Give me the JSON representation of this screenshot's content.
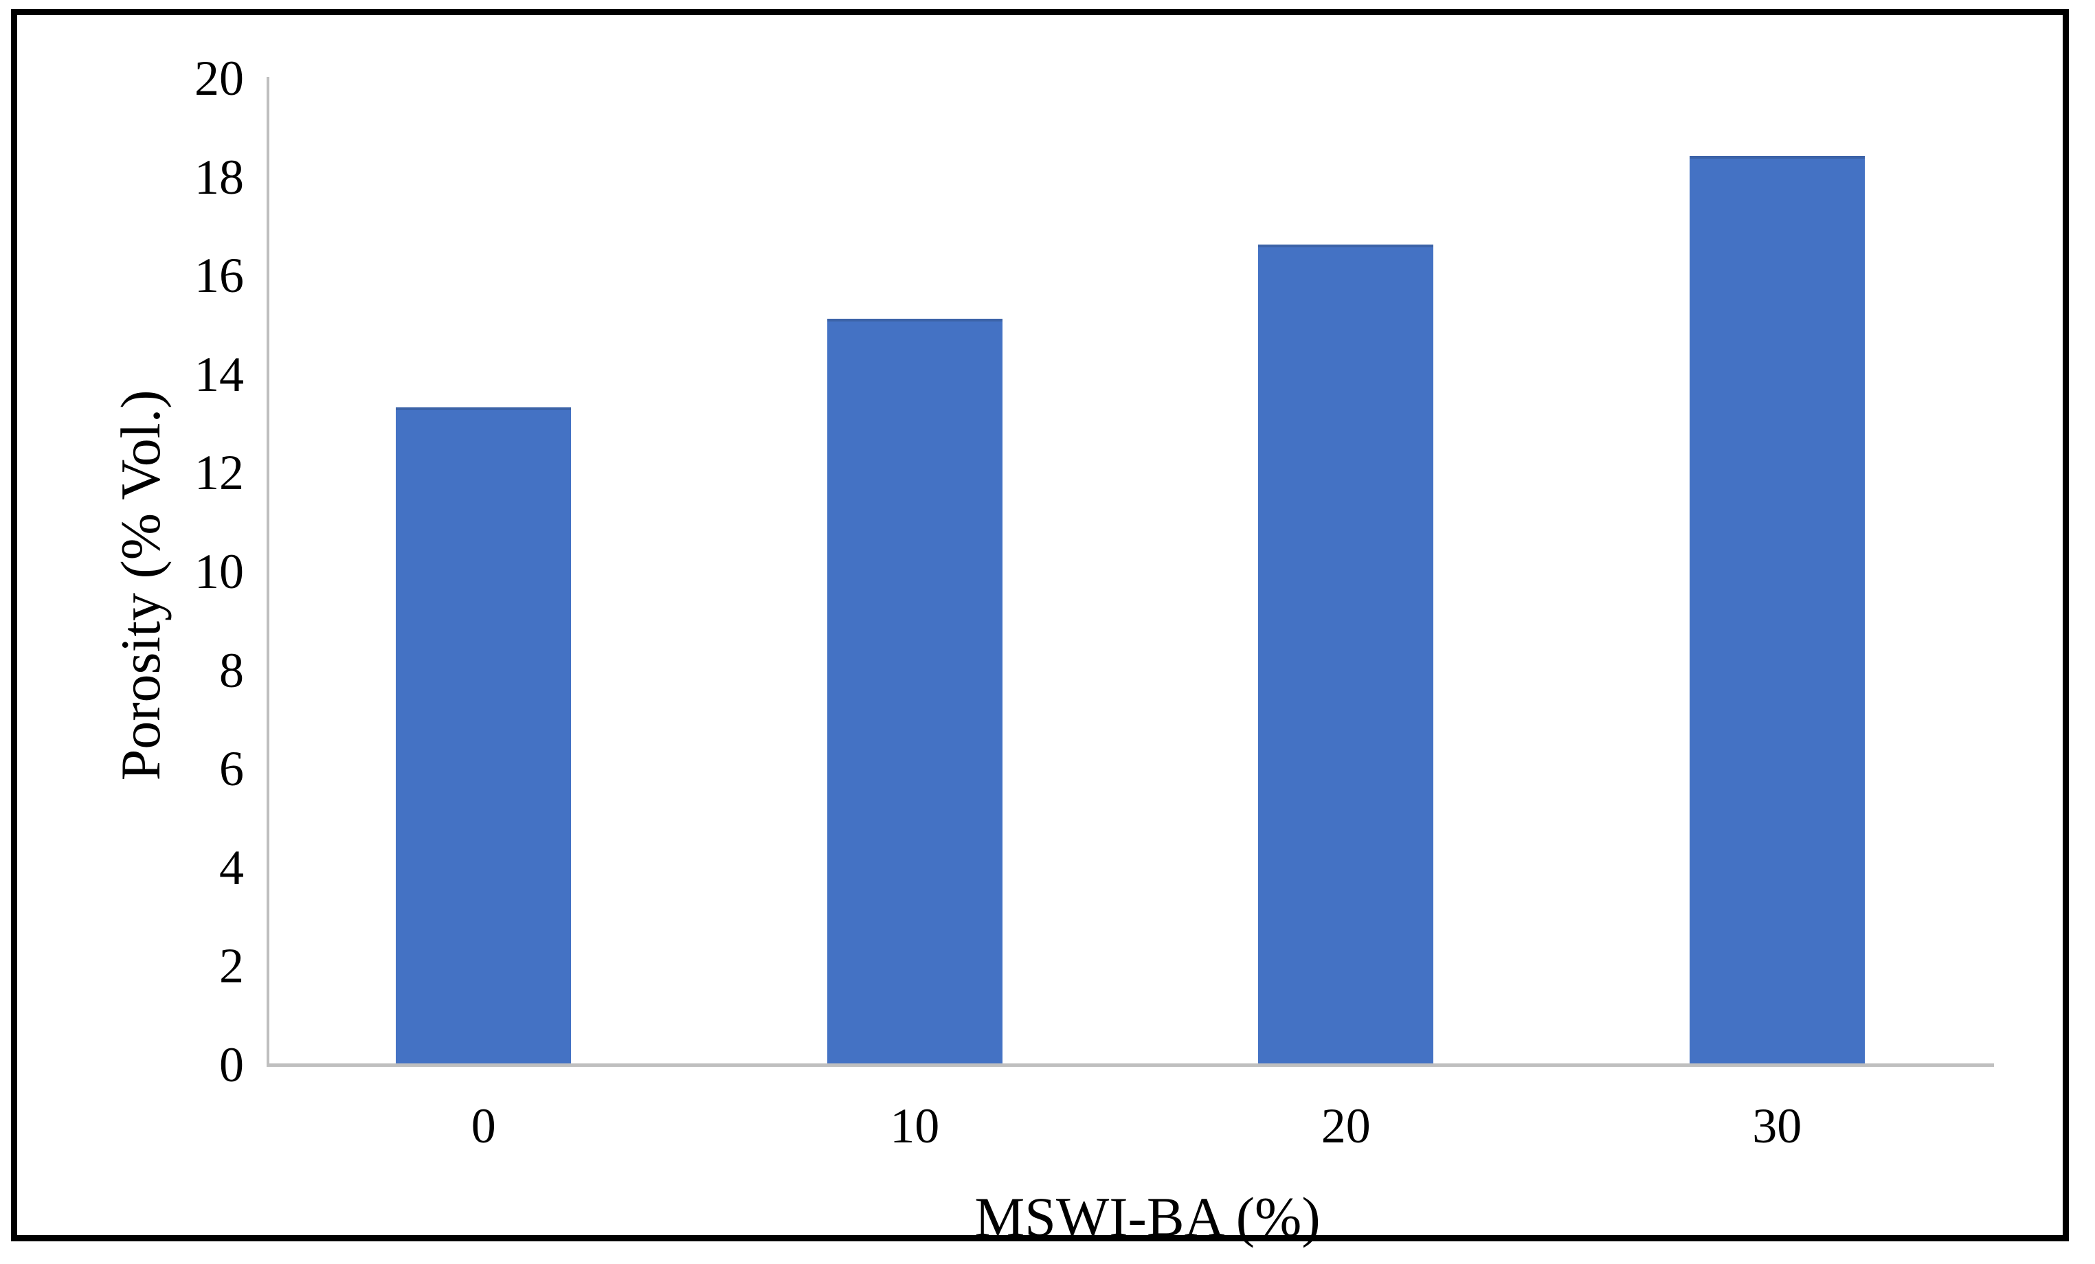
{
  "chart_data": {
    "type": "bar",
    "title": "",
    "categories": [
      "0",
      "10",
      "20",
      "30"
    ],
    "values": [
      13.3,
      15.1,
      16.6,
      18.4
    ],
    "series_name": "Porosity",
    "xlabel": "MSWI-BA (%)",
    "ylabel": "Porosity (% Vol.)",
    "ylim": [
      0,
      20
    ],
    "ytick_step": 2,
    "yticks": [
      "0",
      "2",
      "4",
      "6",
      "8",
      "10",
      "12",
      "14",
      "16",
      "18",
      "20"
    ],
    "grid": false,
    "legend": false,
    "bar_color": "#4472C4",
    "bar_edge_color": "#3C63A8",
    "axis_line_color": "#BFBFBF",
    "text_color": "#000000",
    "frame_border_color": "#000000"
  }
}
